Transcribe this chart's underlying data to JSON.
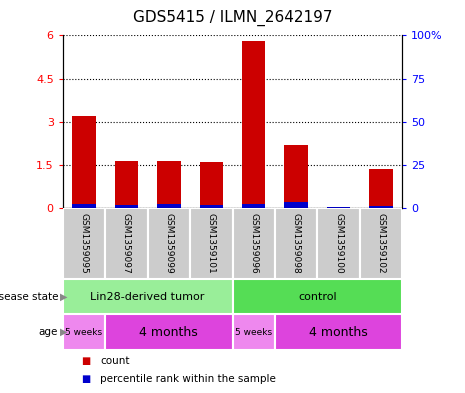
{
  "title": "GDS5415 / ILMN_2642197",
  "samples": [
    "GSM1359095",
    "GSM1359097",
    "GSM1359099",
    "GSM1359101",
    "GSM1359096",
    "GSM1359098",
    "GSM1359100",
    "GSM1359102"
  ],
  "count_values": [
    3.2,
    1.65,
    1.65,
    1.6,
    5.8,
    2.2,
    0.05,
    1.35
  ],
  "percentile_values": [
    0.14,
    0.11,
    0.14,
    0.12,
    0.15,
    0.22,
    0.04,
    0.09
  ],
  "bar_color": "#cc0000",
  "percentile_color": "#0000cc",
  "ylim_left": [
    0,
    6
  ],
  "ylim_right": [
    0,
    100
  ],
  "yticks_left": [
    0,
    1.5,
    3.0,
    4.5,
    6.0
  ],
  "ytick_labels_left": [
    "0",
    "1.5",
    "3",
    "4.5",
    "6"
  ],
  "yticks_right": [
    0,
    25,
    50,
    75,
    100
  ],
  "ytick_labels_right": [
    "0",
    "25",
    "50",
    "75",
    "100%"
  ],
  "disease_state_groups": [
    {
      "label": "Lin28-derived tumor",
      "start": 0,
      "end": 4,
      "color": "#99ee99"
    },
    {
      "label": "control",
      "start": 4,
      "end": 8,
      "color": "#55dd55"
    }
  ],
  "age_groups": [
    {
      "label": "5 weeks",
      "start": 0,
      "end": 1,
      "color": "#ee88ee"
    },
    {
      "label": "4 months",
      "start": 1,
      "end": 4,
      "color": "#dd44dd"
    },
    {
      "label": "5 weeks",
      "start": 4,
      "end": 5,
      "color": "#ee88ee"
    },
    {
      "label": "4 months",
      "start": 5,
      "end": 8,
      "color": "#dd44dd"
    }
  ],
  "legend_items": [
    {
      "label": "count",
      "color": "#cc0000"
    },
    {
      "label": "percentile rank within the sample",
      "color": "#0000cc"
    }
  ],
  "tick_fontsize": 8,
  "title_fontsize": 11,
  "sample_fontsize": 6.5,
  "annot_fontsize": 8,
  "legend_fontsize": 7.5
}
